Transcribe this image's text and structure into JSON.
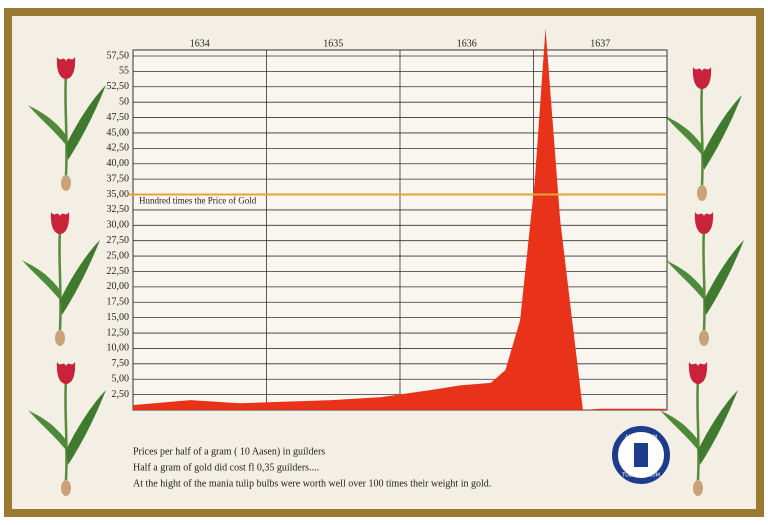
{
  "chart_data": {
    "type": "area",
    "column_labels": [
      "1634",
      "1635",
      "1636",
      "1637"
    ],
    "x": [
      1634.0,
      1634.43,
      1634.8,
      1635.49,
      1635.86,
      1636.22,
      1636.45,
      1636.68,
      1636.79,
      1636.9,
      1637.01,
      1637.09,
      1637.2,
      1637.37,
      1637.5,
      1637.99
    ],
    "values": [
      0.8,
      1.6,
      1.1,
      1.6,
      2.1,
      3.2,
      4.0,
      4.4,
      6.5,
      14.6,
      37.3,
      62,
      30.8,
      0,
      0.2,
      0.2
    ],
    "color": "#e8321a",
    "xlim": [
      1634,
      1638
    ],
    "ylim": [
      0,
      57.5
    ],
    "yticks": [
      {
        "value": 2.5,
        "label": "2,50"
      },
      {
        "value": 5,
        "label": "5,00"
      },
      {
        "value": 7.5,
        "label": "7,50"
      },
      {
        "value": 10,
        "label": "10,00"
      },
      {
        "value": 12.5,
        "label": "12,50"
      },
      {
        "value": 15,
        "label": "15,00"
      },
      {
        "value": 17.5,
        "label": "17,50"
      },
      {
        "value": 20,
        "label": "20,00"
      },
      {
        "value": 22.5,
        "label": "22,50"
      },
      {
        "value": 25,
        "label": "25,00"
      },
      {
        "value": 27.5,
        "label": "27,50"
      },
      {
        "value": 30,
        "label": "30,00"
      },
      {
        "value": 32.5,
        "label": "32,50"
      },
      {
        "value": 35,
        "label": "35,00"
      },
      {
        "value": 37.5,
        "label": "37,50"
      },
      {
        "value": 40,
        "label": "40,00"
      },
      {
        "value": 42.5,
        "label": "42,50"
      },
      {
        "value": 45,
        "label": "45,00"
      },
      {
        "value": 47.5,
        "label": "47,50"
      },
      50,
      {
        "value": 52.5,
        "label": "52,50"
      },
      55,
      {
        "value": 57.5,
        "label": "57,50"
      }
    ],
    "grid": true,
    "reference_line": {
      "value": 35,
      "label": "Hundred times the Price of Gold",
      "color": "#e8a33a"
    },
    "notes": [
      "Prices per half of a gram ( 10 Aasen) in guilders",
      "Half a gram of gold did cost  fl 0,35 guilders....",
      "At the hight of the mania tulip bulbs were worth well over 100 times their weight in gold."
    ],
    "logo_text": [
      "AMSTERDAM",
      "TULIP MUSEUM"
    ]
  }
}
